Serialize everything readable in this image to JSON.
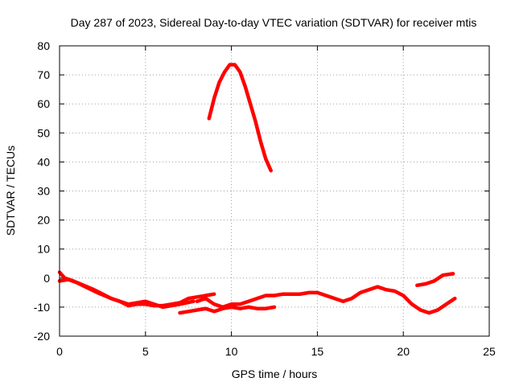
{
  "chart_data": {
    "type": "line",
    "title": "Day 287 of 2023, Sidereal Day-to-day VTEC variation (SDTVAR) for receiver mtis",
    "xlabel": "GPS time / hours",
    "ylabel": "SDTVAR / TECUs",
    "xlim": [
      0,
      25
    ],
    "ylim": [
      -20,
      80
    ],
    "xticks": [
      0,
      5,
      10,
      15,
      20,
      25
    ],
    "yticks": [
      -20,
      -10,
      0,
      10,
      20,
      30,
      40,
      50,
      60,
      70,
      80
    ],
    "grid": true,
    "legend": "none",
    "series_color": "#ff0000",
    "series": [
      {
        "name": "main-low-a",
        "x": [
          0.0,
          0.3,
          0.8,
          1.5,
          2.2,
          3.0,
          3.5,
          4.0,
          4.5,
          5.0,
          5.5,
          6.0,
          6.5,
          7.0,
          7.5,
          8.0,
          8.5,
          9.0
        ],
        "y": [
          2,
          0,
          -1,
          -3,
          -5,
          -7,
          -8,
          -9.5,
          -9,
          -9,
          -9.5,
          -9.5,
          -9,
          -8.5,
          -7,
          -6.5,
          -6,
          -5.5
        ]
      },
      {
        "name": "main-low-b",
        "x": [
          0.0,
          0.5,
          1.0,
          2.0,
          3.0,
          4.0,
          5.0,
          6.0,
          7.0,
          7.8
        ],
        "y": [
          -1,
          -0.5,
          -1.5,
          -4,
          -7,
          -9,
          -8,
          -10,
          -9,
          -8
        ]
      },
      {
        "name": "lower-branch",
        "x": [
          7.0,
          7.5,
          8.0,
          8.5,
          9.0,
          9.5,
          10.0,
          10.5,
          11.0,
          11.5,
          12.0,
          12.5
        ],
        "y": [
          -12,
          -11.5,
          -11,
          -10.5,
          -11.5,
          -10.5,
          -10,
          -10.5,
          -10,
          -10.5,
          -10.5,
          -10
        ]
      },
      {
        "name": "mid-branch",
        "x": [
          8.0,
          8.5,
          9.0,
          9.5,
          10.0,
          10.5,
          11.0,
          11.5,
          12.0,
          12.5,
          13.0,
          13.5,
          14.0,
          14.5,
          15.0,
          15.5,
          16.0,
          16.5,
          17.0,
          17.5,
          18.0,
          18.5,
          19.0,
          19.5,
          20.0,
          20.5,
          21.0,
          21.5,
          22.0,
          22.5,
          23.0
        ],
        "y": [
          -8,
          -7,
          -9,
          -10,
          -9,
          -9,
          -8,
          -7,
          -6,
          -6,
          -5.5,
          -5.5,
          -5.5,
          -5,
          -5,
          -6,
          -7,
          -8,
          -7,
          -5,
          -4,
          -3,
          -4,
          -4.5,
          -6,
          -9,
          -11,
          -12,
          -11,
          -9,
          -7
        ]
      },
      {
        "name": "late-segment",
        "x": [
          20.8,
          21.3,
          21.8,
          22.3,
          22.9
        ],
        "y": [
          -2.5,
          -2,
          -1,
          1,
          1.5
        ]
      },
      {
        "name": "peak-arc",
        "x": [
          8.7,
          9.0,
          9.3,
          9.6,
          9.9,
          10.2,
          10.5,
          10.8,
          11.1,
          11.4,
          11.7,
          12.0,
          12.3
        ],
        "y": [
          55,
          62,
          67.5,
          71,
          73.5,
          73.5,
          71,
          66,
          60,
          54,
          47,
          41,
          37
        ]
      }
    ]
  }
}
